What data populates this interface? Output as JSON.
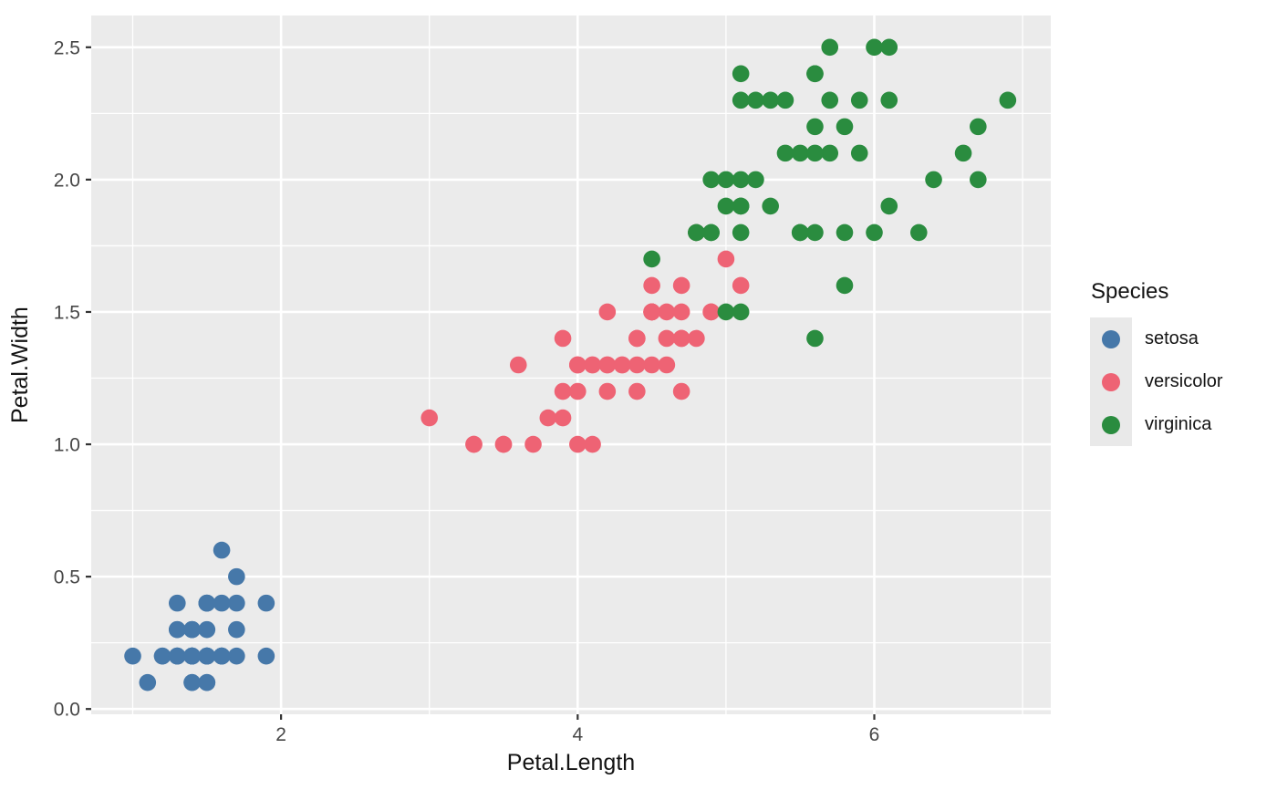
{
  "figure": {
    "background": "#FFFFFF",
    "panel_background": "#EBEBEB",
    "grid_color": "#FFFFFF",
    "tick_mark_color": "#333333",
    "tick_label_color": "#474747",
    "text_color": "#141414",
    "legend_key_background": "#E9E9E9"
  },
  "chart_data": {
    "type": "scatter",
    "title": "",
    "xlabel": "Petal.Length",
    "ylabel": "Petal.Width",
    "xlim": [
      0.72,
      7.19
    ],
    "ylim": [
      -0.02,
      2.62
    ],
    "x_ticks": [
      2,
      4,
      6
    ],
    "x_tick_labels": [
      "2",
      "4",
      "6"
    ],
    "y_ticks": [
      0.0,
      0.5,
      1.0,
      1.5,
      2.0,
      2.5
    ],
    "y_tick_labels": [
      "0.0",
      "0.5",
      "1.0",
      "1.5",
      "2.0",
      "2.5"
    ],
    "x_minor_ticks": [
      1,
      3,
      5,
      7
    ],
    "y_minor_ticks": [
      0.25,
      0.75,
      1.25,
      1.75,
      2.25
    ],
    "grid": true,
    "point_radius": 9.3,
    "legend": {
      "title": "Species",
      "position": "right"
    },
    "series": [
      {
        "name": "setosa",
        "color": "#4678A9",
        "points": [
          [
            1.4,
            0.2
          ],
          [
            1.4,
            0.2
          ],
          [
            1.3,
            0.2
          ],
          [
            1.5,
            0.2
          ],
          [
            1.4,
            0.2
          ],
          [
            1.7,
            0.4
          ],
          [
            1.4,
            0.3
          ],
          [
            1.5,
            0.2
          ],
          [
            1.4,
            0.2
          ],
          [
            1.5,
            0.1
          ],
          [
            1.5,
            0.2
          ],
          [
            1.6,
            0.2
          ],
          [
            1.4,
            0.1
          ],
          [
            1.1,
            0.1
          ],
          [
            1.2,
            0.2
          ],
          [
            1.5,
            0.4
          ],
          [
            1.3,
            0.4
          ],
          [
            1.4,
            0.3
          ],
          [
            1.7,
            0.3
          ],
          [
            1.5,
            0.3
          ],
          [
            1.7,
            0.2
          ],
          [
            1.5,
            0.4
          ],
          [
            1.0,
            0.2
          ],
          [
            1.7,
            0.5
          ],
          [
            1.9,
            0.2
          ],
          [
            1.6,
            0.2
          ],
          [
            1.6,
            0.4
          ],
          [
            1.5,
            0.2
          ],
          [
            1.4,
            0.2
          ],
          [
            1.6,
            0.2
          ],
          [
            1.6,
            0.2
          ],
          [
            1.5,
            0.4
          ],
          [
            1.5,
            0.1
          ],
          [
            1.4,
            0.2
          ],
          [
            1.5,
            0.2
          ],
          [
            1.2,
            0.2
          ],
          [
            1.3,
            0.2
          ],
          [
            1.4,
            0.1
          ],
          [
            1.3,
            0.2
          ],
          [
            1.5,
            0.2
          ],
          [
            1.3,
            0.3
          ],
          [
            1.3,
            0.3
          ],
          [
            1.3,
            0.2
          ],
          [
            1.6,
            0.6
          ],
          [
            1.9,
            0.4
          ],
          [
            1.4,
            0.3
          ],
          [
            1.6,
            0.2
          ],
          [
            1.4,
            0.2
          ],
          [
            1.5,
            0.2
          ],
          [
            1.4,
            0.2
          ]
        ]
      },
      {
        "name": "versicolor",
        "color": "#EE6374",
        "points": [
          [
            4.7,
            1.4
          ],
          [
            4.5,
            1.5
          ],
          [
            4.9,
            1.5
          ],
          [
            4.0,
            1.3
          ],
          [
            4.6,
            1.5
          ],
          [
            4.5,
            1.3
          ],
          [
            4.7,
            1.6
          ],
          [
            3.3,
            1.0
          ],
          [
            4.6,
            1.3
          ],
          [
            3.9,
            1.4
          ],
          [
            3.5,
            1.0
          ],
          [
            4.2,
            1.5
          ],
          [
            4.0,
            1.0
          ],
          [
            4.7,
            1.4
          ],
          [
            3.6,
            1.3
          ],
          [
            4.4,
            1.4
          ],
          [
            4.5,
            1.5
          ],
          [
            4.1,
            1.0
          ],
          [
            4.5,
            1.5
          ],
          [
            3.9,
            1.1
          ],
          [
            4.8,
            1.8
          ],
          [
            4.0,
            1.3
          ],
          [
            4.9,
            1.5
          ],
          [
            4.7,
            1.2
          ],
          [
            4.3,
            1.3
          ],
          [
            4.4,
            1.4
          ],
          [
            4.8,
            1.4
          ],
          [
            5.0,
            1.7
          ],
          [
            4.5,
            1.5
          ],
          [
            3.5,
            1.0
          ],
          [
            3.8,
            1.1
          ],
          [
            3.7,
            1.0
          ],
          [
            3.9,
            1.2
          ],
          [
            5.1,
            1.6
          ],
          [
            4.5,
            1.5
          ],
          [
            4.5,
            1.6
          ],
          [
            4.7,
            1.5
          ],
          [
            4.4,
            1.3
          ],
          [
            4.1,
            1.3
          ],
          [
            4.0,
            1.3
          ],
          [
            4.4,
            1.2
          ],
          [
            4.6,
            1.4
          ],
          [
            4.0,
            1.2
          ],
          [
            3.3,
            1.0
          ],
          [
            4.2,
            1.3
          ],
          [
            4.2,
            1.2
          ],
          [
            4.2,
            1.3
          ],
          [
            4.3,
            1.3
          ],
          [
            3.0,
            1.1
          ],
          [
            4.1,
            1.3
          ]
        ]
      },
      {
        "name": "virginica",
        "color": "#2A8C3F",
        "points": [
          [
            6.0,
            2.5
          ],
          [
            5.1,
            1.9
          ],
          [
            5.9,
            2.1
          ],
          [
            5.6,
            1.8
          ],
          [
            5.8,
            2.2
          ],
          [
            6.6,
            2.1
          ],
          [
            4.5,
            1.7
          ],
          [
            6.3,
            1.8
          ],
          [
            5.8,
            1.8
          ],
          [
            6.1,
            2.5
          ],
          [
            5.1,
            2.0
          ],
          [
            5.3,
            1.9
          ],
          [
            5.5,
            2.1
          ],
          [
            5.0,
            2.0
          ],
          [
            5.1,
            2.4
          ],
          [
            5.3,
            2.3
          ],
          [
            5.5,
            1.8
          ],
          [
            6.7,
            2.2
          ],
          [
            6.9,
            2.3
          ],
          [
            5.0,
            1.5
          ],
          [
            5.7,
            2.3
          ],
          [
            4.9,
            2.0
          ],
          [
            6.7,
            2.0
          ],
          [
            4.9,
            1.8
          ],
          [
            5.7,
            2.1
          ],
          [
            6.0,
            1.8
          ],
          [
            4.8,
            1.8
          ],
          [
            4.9,
            1.8
          ],
          [
            5.6,
            2.1
          ],
          [
            5.8,
            1.6
          ],
          [
            6.1,
            1.9
          ],
          [
            6.4,
            2.0
          ],
          [
            5.6,
            2.2
          ],
          [
            5.1,
            1.5
          ],
          [
            5.6,
            1.4
          ],
          [
            6.1,
            2.3
          ],
          [
            5.6,
            2.4
          ],
          [
            5.5,
            1.8
          ],
          [
            4.8,
            1.8
          ],
          [
            5.4,
            2.1
          ],
          [
            5.6,
            2.4
          ],
          [
            5.1,
            2.3
          ],
          [
            5.1,
            1.9
          ],
          [
            5.9,
            2.3
          ],
          [
            5.7,
            2.5
          ],
          [
            5.2,
            2.3
          ],
          [
            5.0,
            1.9
          ],
          [
            5.2,
            2.0
          ],
          [
            5.4,
            2.3
          ],
          [
            5.1,
            1.8
          ]
        ]
      }
    ]
  }
}
